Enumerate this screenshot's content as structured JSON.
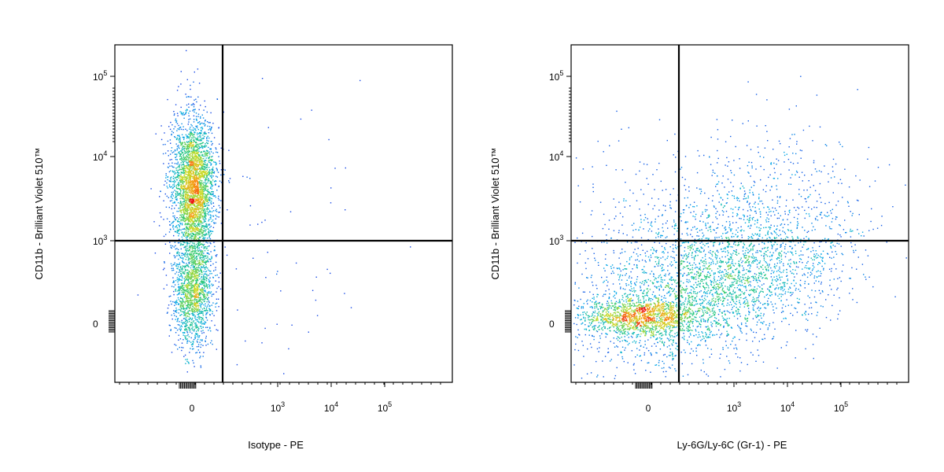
{
  "chart_data": [
    {
      "type": "scatter",
      "subtype": "flow-cytometry-density-dot-plot",
      "xlabel": "Isotype - PE",
      "ylabel": "CD11b - Brilliant Violet 510™",
      "x_scale": "biexponential",
      "y_scale": "biexponential",
      "x_tick_labels": [
        "0",
        "10^3",
        "10^4",
        "10^5"
      ],
      "y_tick_labels": [
        "0",
        "10^3",
        "10^4",
        "10^5"
      ],
      "gate": {
        "x": 200,
        "y": 950
      },
      "quadrant_lines": true,
      "populations": [
        {
          "name": "",
          "x_center": 0,
          "y_center": 5000,
          "relative_size": 0.62
        },
        {
          "name": "",
          "x_center": 0,
          "y_center": 200,
          "relative_size": 0.3
        },
        {
          "name": "",
          "x_center": 400,
          "y_center": 1500,
          "relative_size": 0.02
        }
      ],
      "grid": false,
      "legend": "none"
    },
    {
      "type": "scatter",
      "subtype": "flow-cytometry-density-dot-plot",
      "xlabel": "Ly-6G/Ly-6C (Gr-1) - PE",
      "ylabel": "CD11b - Brilliant Violet 510™",
      "x_scale": "biexponential",
      "y_scale": "biexponential",
      "x_tick_labels": [
        "0",
        "10^3",
        "10^4",
        "10^5"
      ],
      "y_tick_labels": [
        "0",
        "10^3",
        "10^4",
        "10^5"
      ],
      "gate": {
        "x": 200,
        "y": 950
      },
      "quadrant_lines": true,
      "populations": [
        {
          "name": "",
          "x_center": 25000,
          "y_center": 5000,
          "relative_size": 0.5
        },
        {
          "name": "",
          "x_center": 0,
          "y_center": 100,
          "relative_size": 0.25
        },
        {
          "name": "",
          "x_center": 2000,
          "y_center": 400,
          "relative_size": 0.25
        }
      ],
      "grid": false,
      "legend": "none"
    }
  ]
}
